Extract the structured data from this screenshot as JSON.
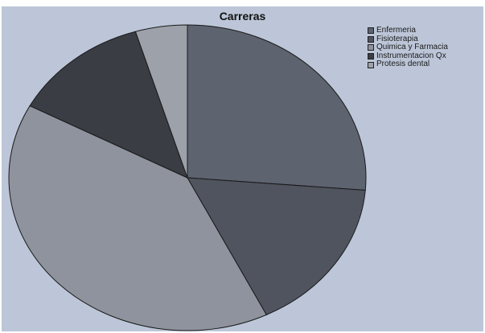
{
  "chart_data": {
    "type": "pie",
    "title": "Carreras",
    "categories": [
      "Enfermeria",
      "Fisioterapia",
      "Quimica y Farmacia",
      "Instrumentacion Qx",
      "Protesis dental"
    ],
    "values": [
      26.3,
      16.4,
      40.1,
      12.5,
      4.7
    ],
    "colors": [
      "#5e6370",
      "#50545e",
      "#8e939d",
      "#3b3d44",
      "#9ca1aa"
    ],
    "legend_position": "top-right",
    "background_color": "#bcc6d8"
  }
}
